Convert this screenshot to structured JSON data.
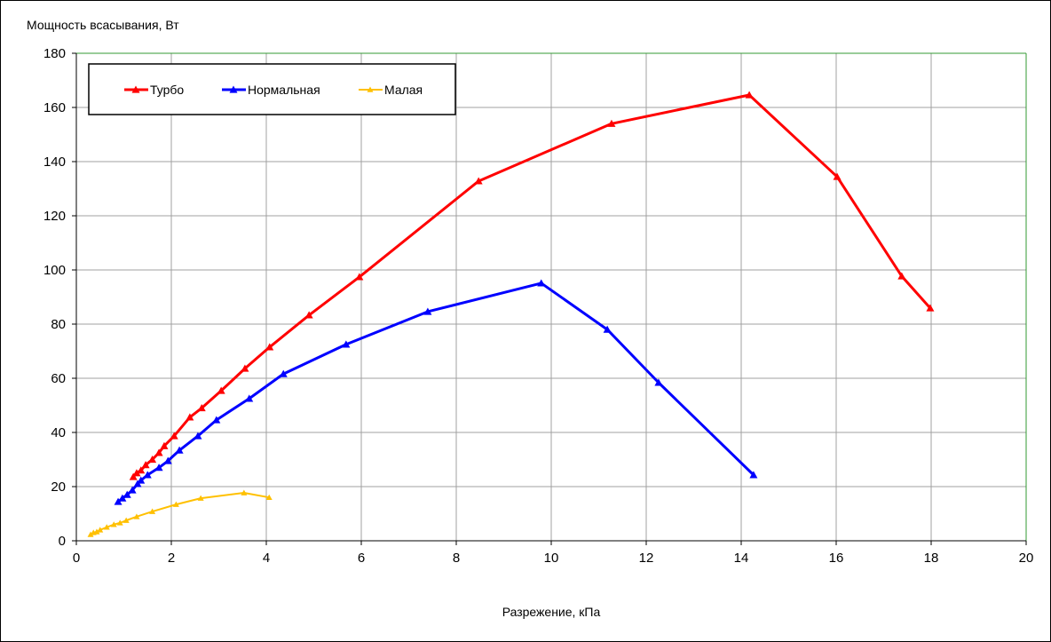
{
  "chart_data": {
    "type": "line",
    "title": "",
    "ylabel": "Мощность всасывания, Вт",
    "xlabel": "Разрежение, кПа",
    "xlim": [
      0,
      20
    ],
    "ylim": [
      0,
      180
    ],
    "xticks": [
      0,
      2,
      4,
      6,
      8,
      10,
      12,
      14,
      16,
      18,
      20
    ],
    "yticks": [
      0,
      20,
      40,
      60,
      80,
      100,
      120,
      140,
      160,
      180
    ],
    "grid": true,
    "legend_position": "top-left",
    "series": [
      {
        "name": "Турбо",
        "color": "#ff0000",
        "x": [
          1.2,
          1.27,
          1.36,
          1.46,
          1.6,
          1.74,
          1.85,
          2.06,
          2.39,
          2.64,
          3.05,
          3.55,
          4.07,
          4.9,
          5.96,
          8.47,
          11.27,
          14.17,
          16.02,
          17.38,
          17.98
        ],
        "y": [
          23.6,
          25,
          26,
          28,
          30,
          32.5,
          35,
          38.7,
          45.6,
          49,
          55.4,
          63.6,
          71.5,
          83.3,
          97.4,
          132.8,
          154,
          164.6,
          134.4,
          97.7,
          85.9
        ]
      },
      {
        "name": "Нормальная",
        "color": "#0000ff",
        "x": [
          0.88,
          0.97,
          1.07,
          1.18,
          1.29,
          1.36,
          1.5,
          1.74,
          1.93,
          2.17,
          2.56,
          2.95,
          3.64,
          4.36,
          5.68,
          7.4,
          9.79,
          11.18,
          12.26,
          14.26
        ],
        "y": [
          14.4,
          15.7,
          17,
          18.7,
          21,
          22.3,
          24.3,
          27,
          29.5,
          33.4,
          38.7,
          44.6,
          52.5,
          61.6,
          72.5,
          84.6,
          95.1,
          78,
          58.4,
          24.3
        ]
      },
      {
        "name": "Малая",
        "color": "#ffc000",
        "x": [
          0.3,
          0.36,
          0.43,
          0.5,
          0.64,
          0.79,
          0.92,
          1.05,
          1.27,
          1.6,
          2.1,
          2.62,
          3.53,
          4.06
        ],
        "y": [
          2.3,
          3,
          3.3,
          4,
          5,
          6,
          6.6,
          7.5,
          8.9,
          10.8,
          13.4,
          15.7,
          17.7,
          16
        ]
      }
    ]
  }
}
